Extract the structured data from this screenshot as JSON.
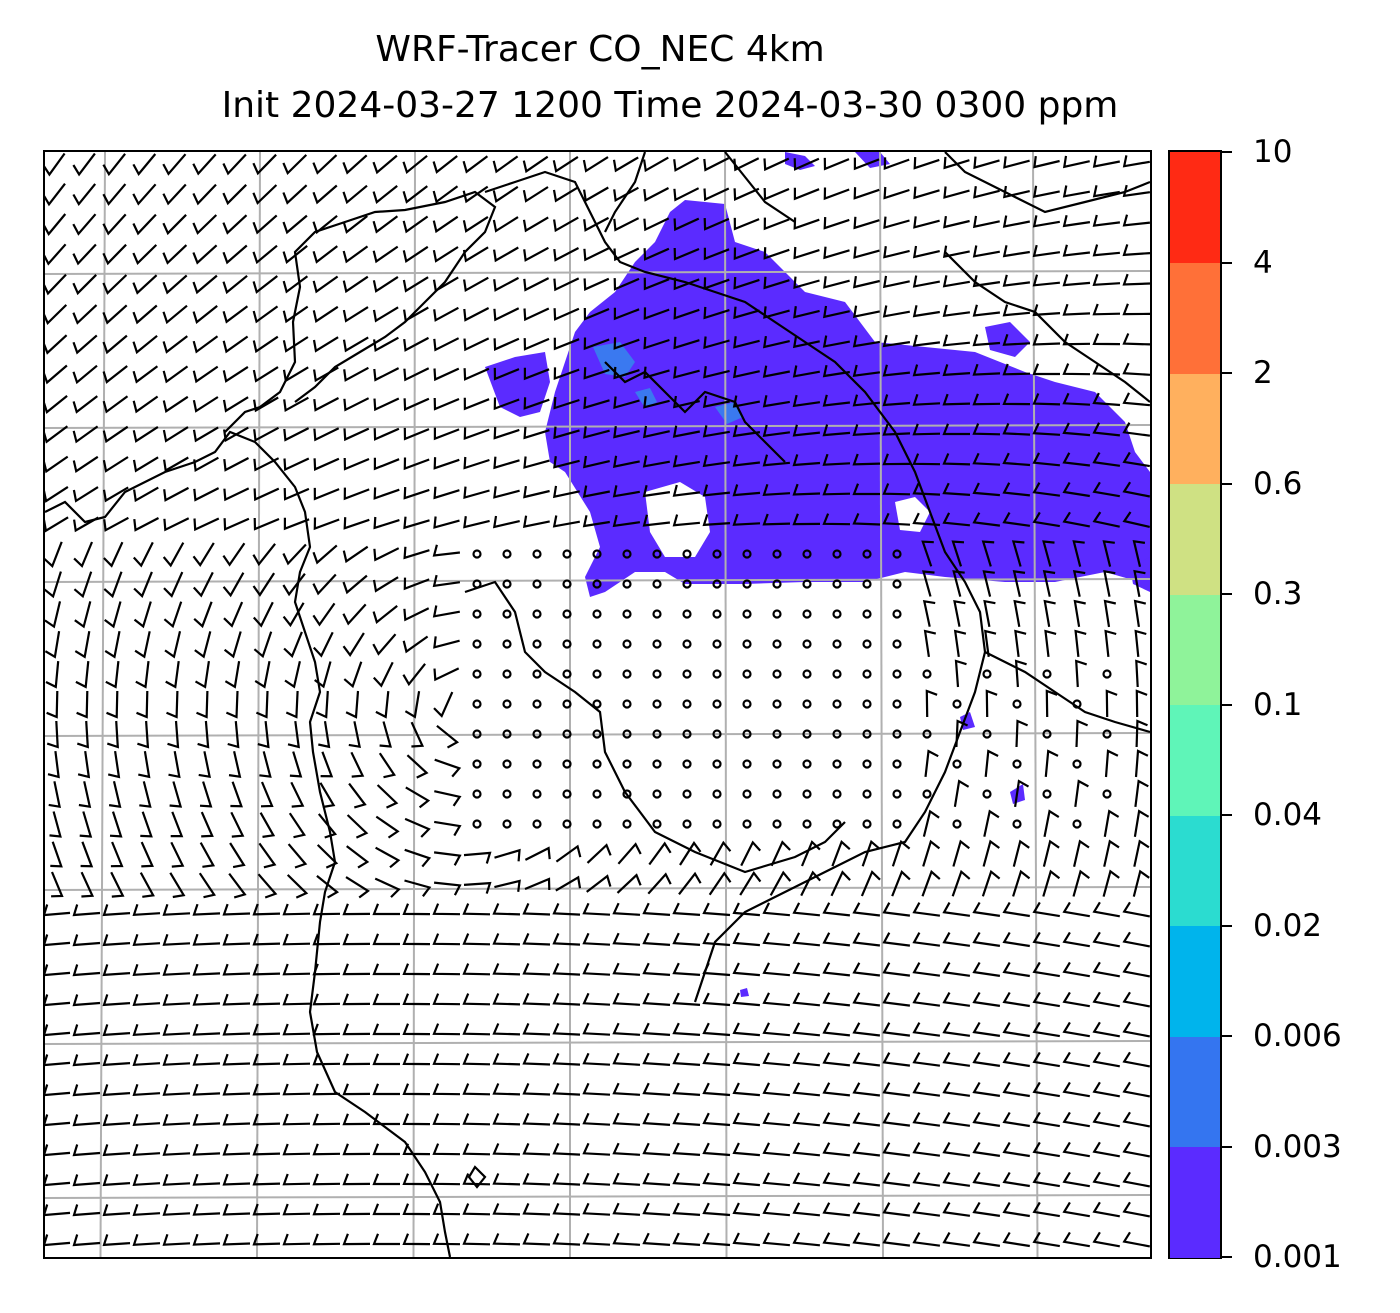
{
  "title": {
    "line1": "WRF-Tracer CO_NEC 4km",
    "line2": "Init 2024-03-27 1200 Time 2024-03-30 0300 ppm"
  },
  "map": {
    "plume_color": "#5b2bff",
    "plume_core_color": "#3a79f0",
    "coastline_color": "#000000",
    "grid_color": "#b0b0b0",
    "barb_color": "#000000"
  },
  "colorbar": {
    "levels": [
      {
        "label": "0.001",
        "color": "#5b2bff"
      },
      {
        "label": "0.003",
        "color": "#3475f0"
      },
      {
        "label": "0.006",
        "color": "#00b4ec"
      },
      {
        "label": "0.02",
        "color": "#2bdcd0"
      },
      {
        "label": "0.04",
        "color": "#5ff5b8"
      },
      {
        "label": "0.1",
        "color": "#8ff39a"
      },
      {
        "label": "0.3",
        "color": "#cfe183"
      },
      {
        "label": "0.6",
        "color": "#ffb05e"
      },
      {
        "label": "2",
        "color": "#ff7038"
      },
      {
        "label": "4",
        "color": "#ff2a14"
      }
    ],
    "top_label": "10"
  }
}
